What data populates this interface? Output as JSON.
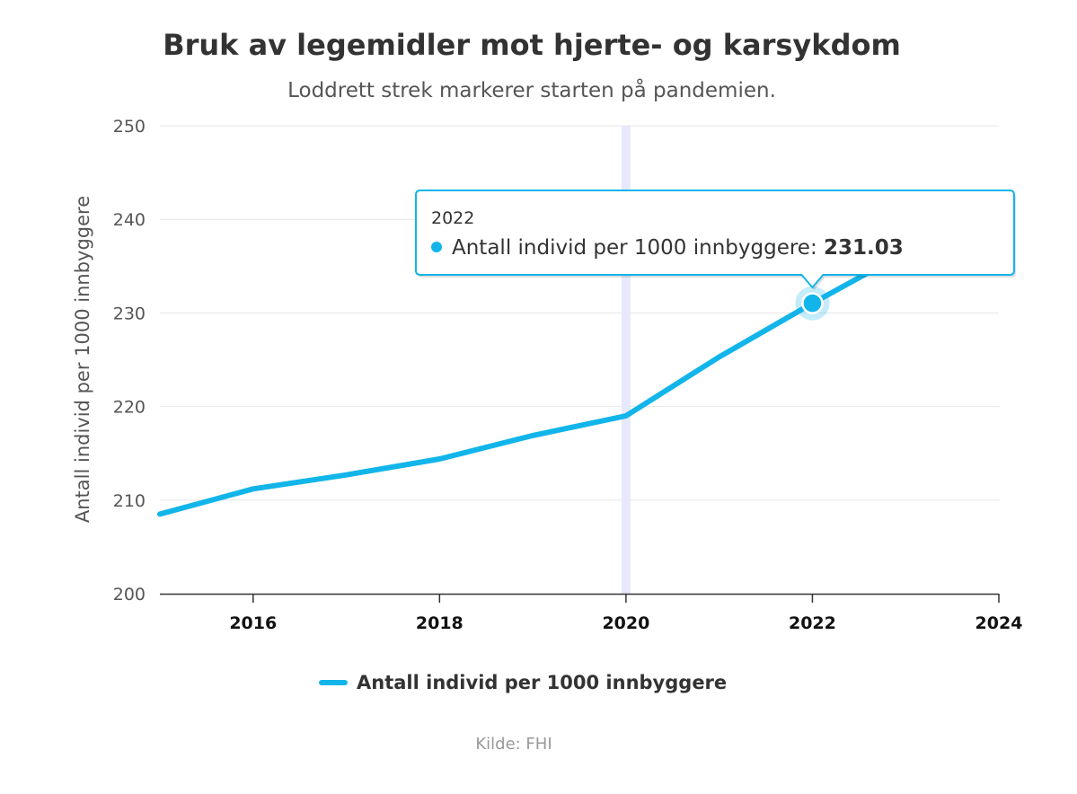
{
  "chart_data": {
    "type": "line",
    "title": "Bruk av legemidler mot hjerte- og karsykdom",
    "subtitle": "Loddrett strek markerer starten på pandemien.",
    "ylabel": "Antall individ per 1000 innbyggere",
    "xlabel": "",
    "xlim": [
      2015,
      2024
    ],
    "ylim": [
      200,
      250
    ],
    "x_ticks": [
      "2016",
      "2018",
      "2020",
      "2022",
      "2024"
    ],
    "y_ticks": [
      "200",
      "210",
      "220",
      "230",
      "240",
      "250"
    ],
    "grid": true,
    "legend_position": "bottom-center",
    "plot_band_year": 2020,
    "series": [
      {
        "name": "Antall individ per 1000 innbyggere",
        "color": "#12b5ea",
        "x": [
          2015,
          2016,
          2017,
          2018,
          2019,
          2020,
          2021,
          2022,
          2023,
          2024
        ],
        "values": [
          208.5,
          211.2,
          212.7,
          214.4,
          216.9,
          219.0,
          225.3,
          231.03,
          236.5,
          241.5
        ]
      }
    ],
    "tooltip": {
      "header": "2022",
      "series_label": "Antall individ per 1000 innbyggere:",
      "value": "231.03",
      "point_index": 7
    },
    "credit": "Kilde: FHI"
  }
}
